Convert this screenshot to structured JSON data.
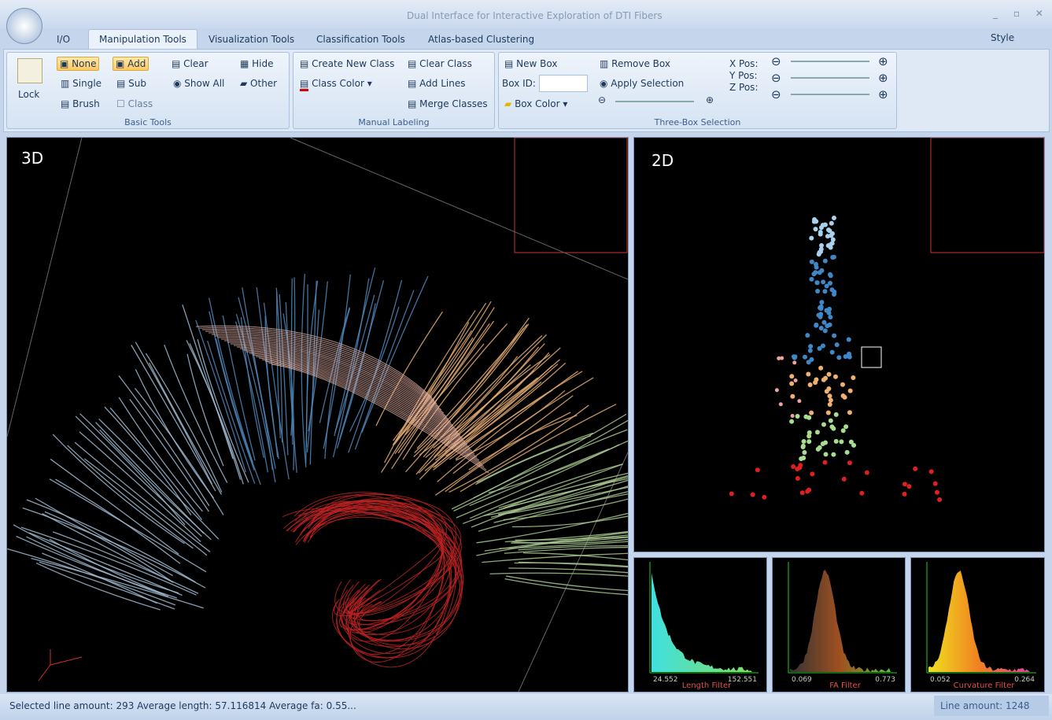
{
  "window": {
    "title": "Dual Interface for Interactive Exploration of DTI Fibers"
  },
  "tabs": [
    "I/O",
    "Manipulation Tools",
    "Visualization Tools",
    "Classification Tools",
    "Atlas-based Clustering"
  ],
  "style_menu": "Style",
  "ribbon": {
    "groups": [
      {
        "label": "Basic Tools",
        "buttons": [
          "Lock",
          "None",
          "Add",
          "Clear",
          "Hide",
          "Single",
          "Sub",
          "Show All",
          "Other",
          "Brush",
          "Class"
        ]
      },
      {
        "label": "Manual Labeling",
        "buttons": [
          "Create New Class",
          "Clear Class",
          "Class Color",
          "Add Lines",
          "Merge Classes"
        ]
      },
      {
        "label": "Three-Box Selection",
        "buttons": [
          "New Box",
          "Remove Box",
          "Box ID:",
          "Apply Selection",
          "Box Color",
          "X Pos:",
          "Y Pos:",
          "Z Pos:"
        ]
      }
    ]
  },
  "views": {
    "view3d": "3D",
    "view2d": "2D"
  },
  "histograms": [
    {
      "label": "Length Filter",
      "min": "24.552",
      "max": "152.551"
    },
    {
      "label": "FA Filter",
      "min": "0.069",
      "max": "0.773"
    },
    {
      "label": "Curvature Filter",
      "min": "0.052",
      "max": "0.264"
    }
  ],
  "status": {
    "left": "Selected line amount: 293 Average length: 57.116814 Average fa: 0.55...",
    "right": "Line amount: 1248"
  }
}
